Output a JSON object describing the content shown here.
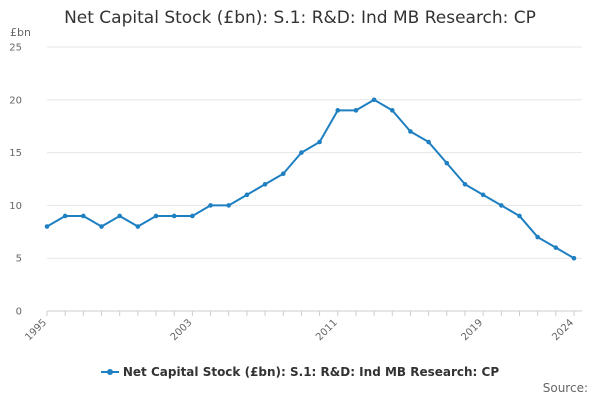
{
  "chart_data": {
    "type": "line",
    "title": "Net Capital Stock (£bn): S.1: R&D: Ind MB Research: CP",
    "ylabel": "£bn",
    "xlabel": "",
    "x": [
      1995,
      1996,
      1997,
      1998,
      1999,
      2000,
      2001,
      2002,
      2003,
      2004,
      2005,
      2006,
      2007,
      2008,
      2009,
      2010,
      2011,
      2012,
      2013,
      2014,
      2015,
      2016,
      2017,
      2018,
      2019,
      2020,
      2021,
      2022,
      2023,
      2024
    ],
    "series": [
      {
        "name": "Net Capital Stock (£bn): S.1: R&D: Ind MB Research: CP",
        "values": [
          8,
          9,
          9,
          8,
          9,
          8,
          9,
          9,
          9,
          10,
          10,
          11,
          12,
          13,
          15,
          16,
          19,
          19,
          20,
          19,
          17,
          16,
          14,
          12,
          11,
          10,
          9,
          7,
          6,
          5
        ]
      }
    ],
    "x_ticks": [
      "1995",
      "2003",
      "2011",
      "2019",
      "2024"
    ],
    "y_ticks": [
      "0",
      "5",
      "10",
      "15",
      "20",
      "25"
    ],
    "ylim": [
      0,
      25
    ],
    "xlim": [
      1995,
      2024
    ],
    "grid": true,
    "legend_position": "bottom",
    "colors": {
      "series": "#1f80c1",
      "grid": "#e6e6e6",
      "axis": "#cccccc"
    },
    "source_label": "Source:"
  }
}
